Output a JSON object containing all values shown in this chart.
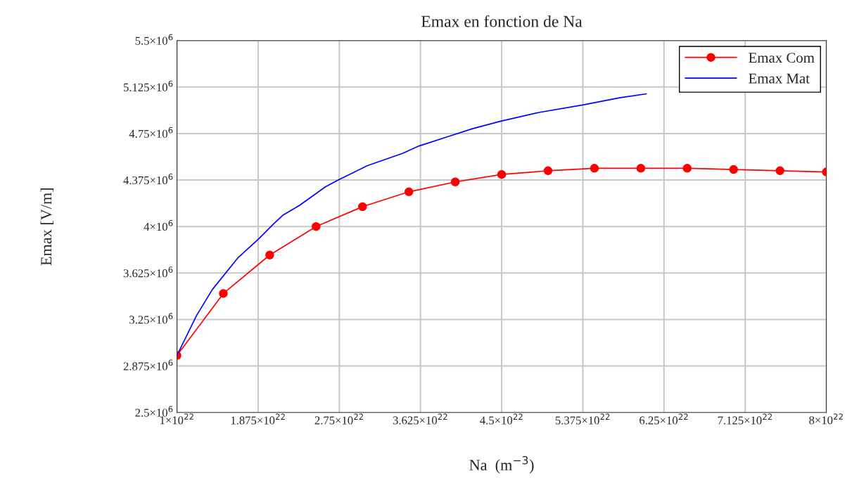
{
  "chart_data": {
    "type": "line",
    "title": "Emax en fonction de Na",
    "xlabel": "Na  (m$^{−3}$)",
    "ylabel": "Emax [V/m]",
    "xlim": [
      1e+22,
      8e+22
    ],
    "ylim": [
      2500000.0,
      5500000.0
    ],
    "xticks": [
      {
        "value": 1e+22,
        "label": "1×10$^{22}$"
      },
      {
        "value": 1.875e+22,
        "label": "1.875×10$^{22}$"
      },
      {
        "value": 2.75e+22,
        "label": "2.75×10$^{22}$"
      },
      {
        "value": 3.625e+22,
        "label": "3.625×10$^{22}$"
      },
      {
        "value": 4.5e+22,
        "label": "4.5×10$^{22}$"
      },
      {
        "value": 5.375e+22,
        "label": "5.375×10$^{22}$"
      },
      {
        "value": 6.25e+22,
        "label": "6.25×10$^{22}$"
      },
      {
        "value": 7.125e+22,
        "label": "7.125×10$^{22}$"
      },
      {
        "value": 8e+22,
        "label": "8×10$^{22}$"
      }
    ],
    "yticks": [
      {
        "value": 2500000.0,
        "label": "2.5×10$^{6}$"
      },
      {
        "value": 2875000.0,
        "label": "2.875×10$^{6}$"
      },
      {
        "value": 3250000.0,
        "label": "3.25×10$^{6}$"
      },
      {
        "value": 3625000.0,
        "label": "3.625×10$^{6}$"
      },
      {
        "value": 4000000.0,
        "label": "4×10$^{6}$"
      },
      {
        "value": 4375000.0,
        "label": "4.375×10$^{6}$"
      },
      {
        "value": 4750000.0,
        "label": "4.75×10$^{6}$"
      },
      {
        "value": 5125000.0,
        "label": "5.125×10$^{6}$"
      },
      {
        "value": 5500000.0,
        "label": "5.5×10$^{6}$"
      }
    ],
    "grid": true,
    "legend": "top right",
    "series": [
      {
        "name": "Emax Com",
        "color": "#ff0000",
        "marker": "circle",
        "x": [
          1e+22,
          1.5e+22,
          2e+22,
          2.5e+22,
          3e+22,
          3.5e+22,
          4e+22,
          4.5e+22,
          5e+22,
          5.5e+22,
          6e+22,
          6.5e+22,
          7e+22,
          7.5e+22,
          8e+22
        ],
        "values": [
          2960000.0,
          3460000.0,
          3770000.0,
          4000000.0,
          4160000.0,
          4280000.0,
          4360000.0,
          4420000.0,
          4450000.0,
          4470000.0,
          4470000.0,
          4470000.0,
          4460000.0,
          4450000.0,
          4440000.0
        ]
      },
      {
        "name": "Emax Mat",
        "color": "#0000ff",
        "marker": "none",
        "x": [
          1e+22,
          1.21e+22,
          1.38e+22,
          1.66e+22,
          1.88e+22,
          2.04e+22,
          2.14e+22,
          2.32e+22,
          2.6e+22,
          2.75e+22,
          3.05e+22,
          3.43e+22,
          3.61e+22,
          3.94e+22,
          4.19e+22,
          4.49e+22,
          4.9e+22,
          5.37e+22,
          5.78e+22,
          6.06e+22
        ],
        "values": [
          2960000.0,
          3280000.0,
          3490000.0,
          3750000.0,
          3900000.0,
          4020000.0,
          4090000.0,
          4170000.0,
          4320000.0,
          4380000.0,
          4490000.0,
          4590000.0,
          4650000.0,
          4730000.0,
          4790000.0,
          4850000.0,
          4920000.0,
          4980000.0,
          5040000.0,
          5070000.0
        ]
      }
    ]
  }
}
